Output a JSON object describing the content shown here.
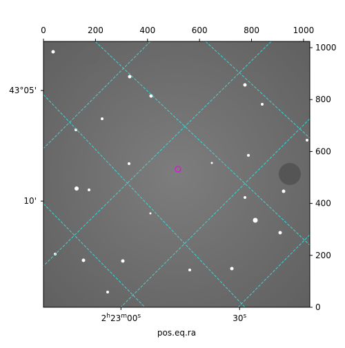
{
  "chart_data": {
    "type": "image",
    "xlabel": "pos.eq.ra",
    "xlim": [
      0,
      1024
    ],
    "ylim": [
      0,
      1024
    ],
    "xticks": [
      0,
      200,
      400,
      600,
      800,
      1000
    ],
    "yticks": [
      0,
      200,
      400,
      600,
      800,
      1000
    ],
    "ra_ticks": [
      {
        "value": 298,
        "label": "2h23m00s"
      },
      {
        "value": 754,
        "label": "30s"
      }
    ],
    "dec_ticks": [
      {
        "value": 835,
        "label": "43°05'"
      },
      {
        "value": 409,
        "label": "10'"
      }
    ]
  }
}
